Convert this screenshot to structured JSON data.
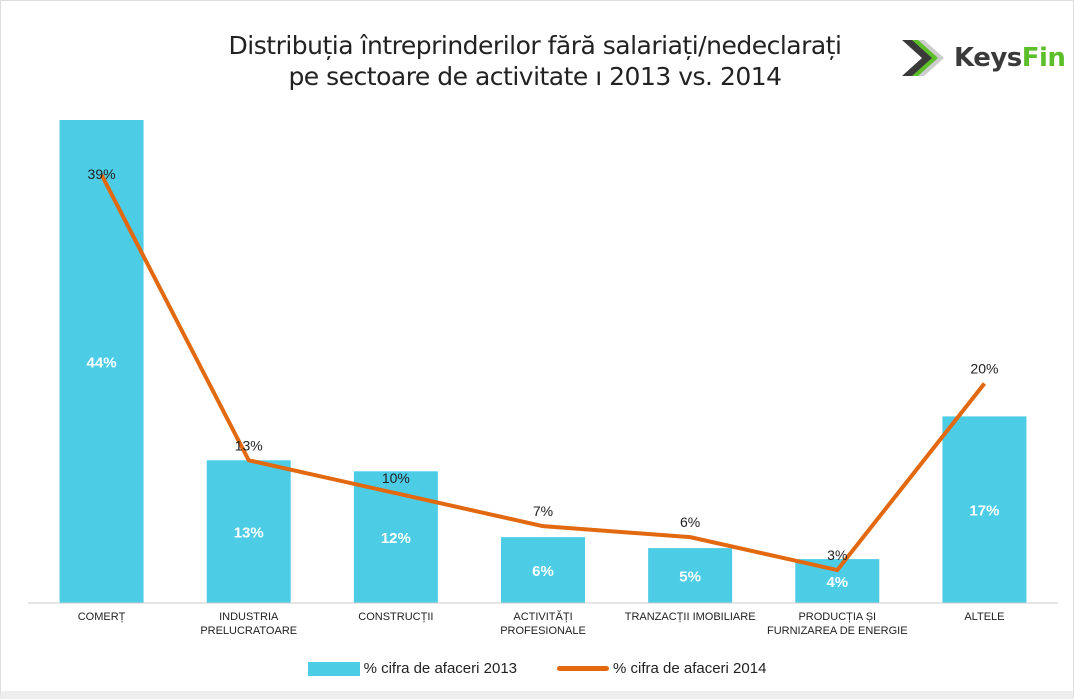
{
  "header": {
    "title_line1": "Distribuția întreprinderilor fără salariați/nedeclarați",
    "title_line2": "pe sectoare de activitate  ı 2013 vs. 2014",
    "logo_text_a": "Keys",
    "logo_text_b": "Fin"
  },
  "chart_data": {
    "type": "bar",
    "title": "Distribuția întreprinderilor fără salariați/nedeclarați pe sectoare de activitate ı 2013 vs. 2014",
    "categories": [
      "COMERȚ",
      "INDUSTRIA PRELUCRATOARE",
      "CONSTRUCȚII",
      "ACTIVITĂȚI PROFESIONALE",
      "TRANZACȚII IMOBILIARE",
      "PRODUCȚIA ȘI FURNIZAREA DE ENERGIE",
      "ALTELE"
    ],
    "category_lines": [
      [
        "COMERȚ"
      ],
      [
        "INDUSTRIA",
        "PRELUCRATOARE"
      ],
      [
        "CONSTRUCȚII"
      ],
      [
        "ACTIVITĂȚI",
        "PROFESIONALE"
      ],
      [
        "TRANZACȚII IMOBILIARE"
      ],
      [
        "PRODUCȚIA ȘI",
        "FURNIZAREA DE ENERGIE"
      ],
      [
        "ALTELE"
      ]
    ],
    "series": [
      {
        "name": "% cifra de afaceri 2013",
        "type": "bar",
        "color": "#4dcce6",
        "values": [
          44,
          13,
          12,
          6,
          5,
          4,
          17
        ],
        "labels": [
          "44%",
          "13%",
          "12%",
          "6%",
          "5%",
          "4%",
          "17%"
        ]
      },
      {
        "name": "% cifra de afaceri 2014",
        "type": "line",
        "color": "#e2690f",
        "values": [
          39,
          13,
          10,
          7,
          6,
          3,
          20
        ],
        "labels": [
          "39%",
          "13%",
          "10%",
          "7%",
          "6%",
          "3%",
          "20%"
        ]
      }
    ],
    "ylim": [
      0,
      44
    ],
    "grid": false,
    "legend": "bottom"
  }
}
